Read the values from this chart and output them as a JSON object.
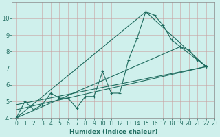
{
  "xlabel": "Humidex (Indice chaleur)",
  "bg_color": "#cff0ec",
  "grid_color": "#b0b0b0",
  "line_color": "#1e6b5e",
  "xlim": [
    -0.5,
    23
  ],
  "ylim": [
    4,
    11
  ],
  "yticks": [
    4,
    5,
    6,
    7,
    8,
    9,
    10
  ],
  "xticks": [
    0,
    1,
    2,
    3,
    4,
    5,
    6,
    7,
    8,
    9,
    10,
    11,
    12,
    13,
    14,
    15,
    16,
    17,
    18,
    19,
    20,
    21,
    22,
    23
  ],
  "curve": {
    "x": [
      0,
      1,
      2,
      3,
      4,
      5,
      6,
      7,
      8,
      9,
      10,
      11,
      12,
      13,
      14,
      15,
      16,
      17,
      18,
      19,
      20,
      21,
      22
    ],
    "y": [
      4.0,
      5.0,
      4.5,
      4.8,
      5.5,
      5.2,
      5.2,
      4.6,
      5.3,
      5.3,
      6.8,
      5.5,
      5.5,
      7.5,
      8.8,
      10.4,
      10.2,
      9.6,
      8.7,
      8.3,
      8.1,
      7.5,
      7.1
    ]
  },
  "line1": {
    "x": [
      0,
      15,
      22
    ],
    "y": [
      4.0,
      10.4,
      7.1
    ]
  },
  "line2": {
    "x": [
      0,
      19,
      22
    ],
    "y": [
      4.0,
      8.3,
      7.1
    ]
  },
  "line3": {
    "x": [
      0,
      22
    ],
    "y": [
      4.5,
      7.1
    ]
  },
  "line4": {
    "x": [
      0,
      22
    ],
    "y": [
      4.8,
      7.1
    ]
  }
}
